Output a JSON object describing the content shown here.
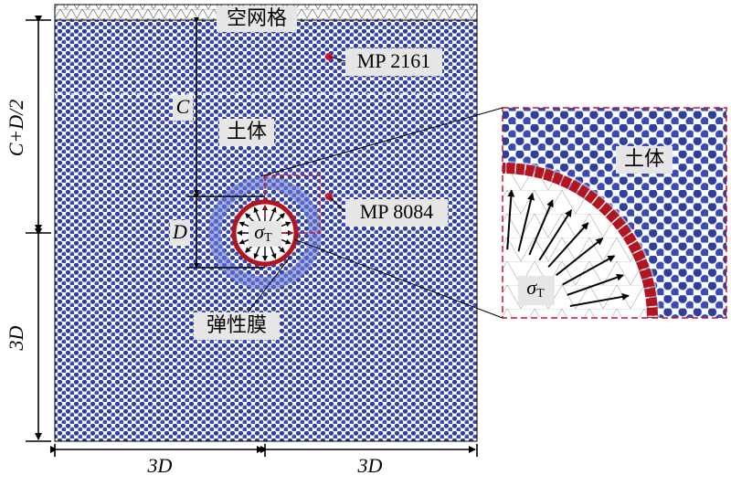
{
  "top_label": "空网格",
  "monitor_points": [
    "MP 2161",
    "MP 8084"
  ],
  "annotations": {
    "c": "C",
    "d": "D",
    "soil": "土体",
    "membrane": "弹性膜"
  },
  "stress": {
    "symbol": "σ",
    "subscript": "T"
  },
  "dimensions": {
    "left_upper": "C+D/2",
    "left_lower": "3D",
    "bottom_left": "3D",
    "bottom_right": "3D"
  },
  "inset": {
    "soil": "土体",
    "stress": {
      "symbol": "σ",
      "subscript": "T"
    }
  }
}
